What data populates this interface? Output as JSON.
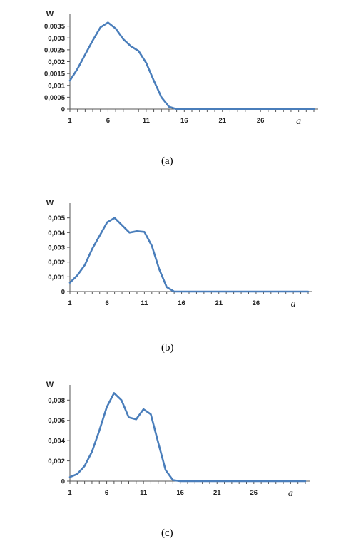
{
  "chart_data": [
    {
      "type": "line",
      "panel": "(a)",
      "ylabel": "W",
      "xlabel": "a",
      "xlim": [
        1,
        33
      ],
      "ylim": [
        0,
        0.004
      ],
      "x_ticks": [
        "1",
        "6",
        "11",
        "16",
        "21",
        "26"
      ],
      "y_ticks": [
        "0",
        "0,0005",
        "0,001",
        "0,0015",
        "0,002",
        "0,0025",
        "0,003",
        "0,0035"
      ],
      "y_tick_values": [
        0,
        0.0005,
        0.001,
        0.0015,
        0.002,
        0.0025,
        0.003,
        0.0035
      ],
      "series": [
        {
          "color": "#4a7ebb",
          "x": [
            1,
            2,
            3,
            4,
            5,
            6,
            7,
            8,
            9,
            10,
            11,
            12,
            13,
            14,
            15,
            16,
            17,
            18,
            19,
            20,
            21,
            22,
            23,
            24,
            25,
            26,
            27,
            28,
            29,
            30,
            31,
            32,
            33
          ],
          "values": [
            0.0012,
            0.0017,
            0.0023,
            0.0029,
            0.00345,
            0.00365,
            0.0034,
            0.00295,
            0.00265,
            0.00245,
            0.00195,
            0.0012,
            0.0005,
            0.0001,
            0,
            0,
            0,
            0,
            0,
            0,
            0,
            0,
            0,
            0,
            0,
            0,
            0,
            0,
            0,
            0,
            0,
            0,
            0
          ]
        }
      ]
    },
    {
      "type": "line",
      "panel": "(b)",
      "ylabel": "W",
      "xlabel": "a",
      "xlim": [
        1,
        33
      ],
      "ylim": [
        0,
        0.006
      ],
      "x_ticks": [
        "1",
        "6",
        "11",
        "16",
        "21",
        "26"
      ],
      "y_ticks": [
        "0",
        "0,001",
        "0,002",
        "0,003",
        "0,004",
        "0,005"
      ],
      "y_tick_values": [
        0,
        0.001,
        0.002,
        0.003,
        0.004,
        0.005
      ],
      "series": [
        {
          "color": "#4a7ebb",
          "x": [
            1,
            2,
            3,
            4,
            5,
            6,
            7,
            8,
            9,
            10,
            11,
            12,
            13,
            14,
            15,
            16,
            17,
            18,
            19,
            20,
            21,
            22,
            23,
            24,
            25,
            26,
            27,
            28,
            29,
            30,
            31,
            32,
            33
          ],
          "values": [
            0.0006,
            0.0011,
            0.0018,
            0.0029,
            0.0038,
            0.0047,
            0.005,
            0.0045,
            0.004,
            0.0041,
            0.00405,
            0.0031,
            0.0015,
            0.0003,
            0,
            0,
            0,
            0,
            0,
            0,
            0,
            0,
            0,
            0,
            0,
            0,
            0,
            0,
            0,
            0,
            0,
            0,
            0
          ]
        }
      ]
    },
    {
      "type": "line",
      "panel": "(c)",
      "ylabel": "W",
      "xlabel": "a",
      "xlim": [
        1,
        33
      ],
      "ylim": [
        0,
        0.0095
      ],
      "x_ticks": [
        "1",
        "6",
        "11",
        "16",
        "21",
        "26"
      ],
      "y_ticks": [
        "0",
        "0,002",
        "0,004",
        "0,006",
        "0,008"
      ],
      "y_tick_values": [
        0,
        0.002,
        0.004,
        0.006,
        0.008
      ],
      "series": [
        {
          "color": "#4a7ebb",
          "x": [
            1,
            2,
            3,
            4,
            5,
            6,
            7,
            8,
            9,
            10,
            11,
            12,
            13,
            14,
            15,
            16,
            17,
            18,
            19,
            20,
            21,
            22,
            23,
            24,
            25,
            26,
            27,
            28,
            29,
            30,
            31,
            32,
            33
          ],
          "values": [
            0.0004,
            0.0007,
            0.0015,
            0.0029,
            0.005,
            0.0073,
            0.0087,
            0.008,
            0.0063,
            0.0061,
            0.0071,
            0.0066,
            0.0038,
            0.0011,
            0.0001,
            0,
            0,
            0,
            0,
            0,
            0,
            0,
            0,
            0,
            0,
            0,
            0,
            0,
            0,
            0,
            0,
            0,
            0
          ]
        }
      ]
    }
  ]
}
